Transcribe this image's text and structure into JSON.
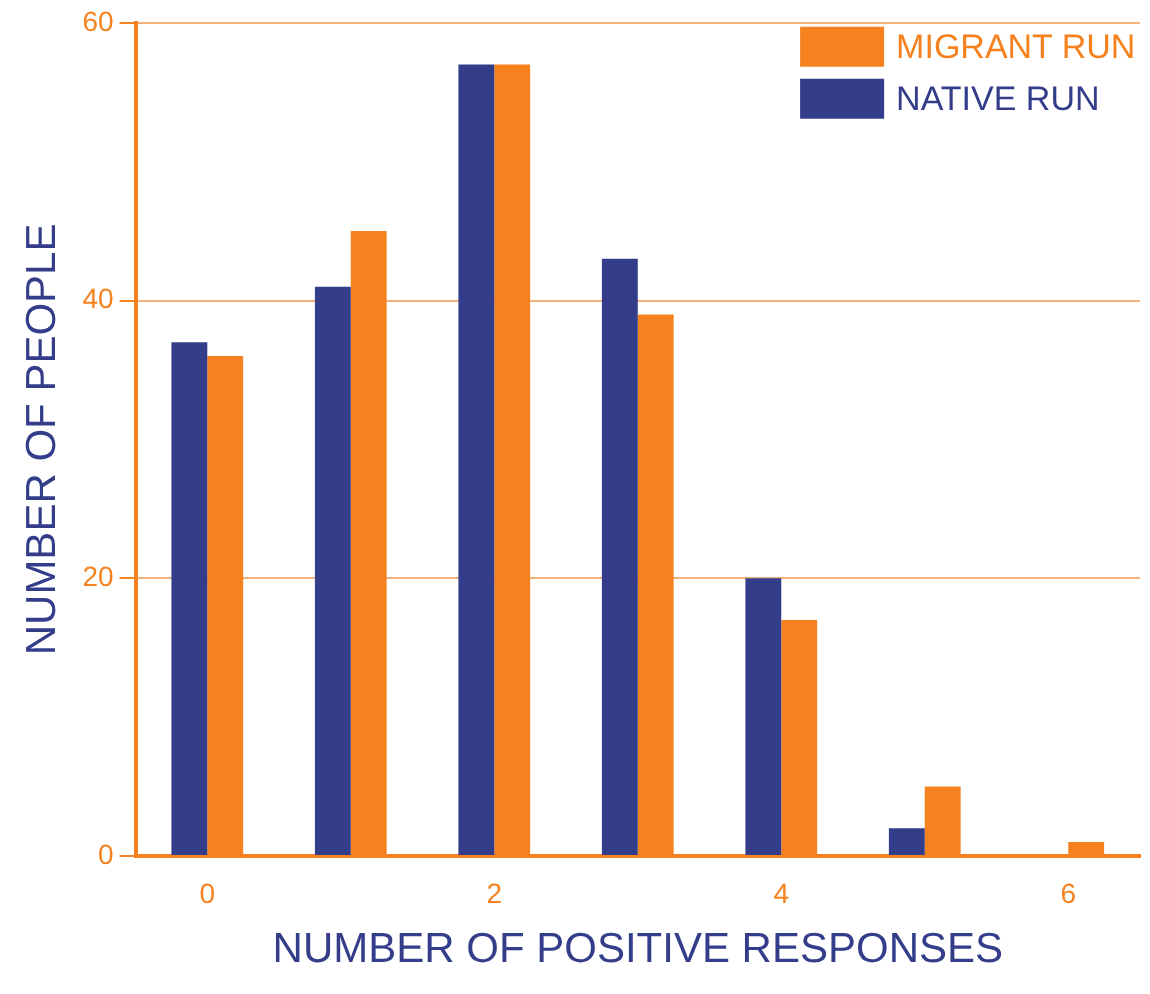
{
  "chart_data": {
    "type": "bar",
    "xlabel": "NUMBER OF POSITIVE RESPONSES",
    "ylabel": "NUMBER OF PEOPLE",
    "categories": [
      "0",
      null,
      "2",
      null,
      "4",
      null,
      "6"
    ],
    "series": [
      {
        "name": "NATIVE RUN",
        "color": "#343d8a",
        "values": [
          37,
          41,
          57,
          43,
          20,
          2,
          0
        ]
      },
      {
        "name": "MIGRANT RUN",
        "color": "#f5821f",
        "values": [
          36,
          45,
          57,
          39,
          17,
          5,
          1
        ]
      }
    ],
    "ylim": [
      0,
      60
    ],
    "yticks": [
      0,
      20,
      40,
      60
    ],
    "grid": "y",
    "legend": "top right"
  }
}
